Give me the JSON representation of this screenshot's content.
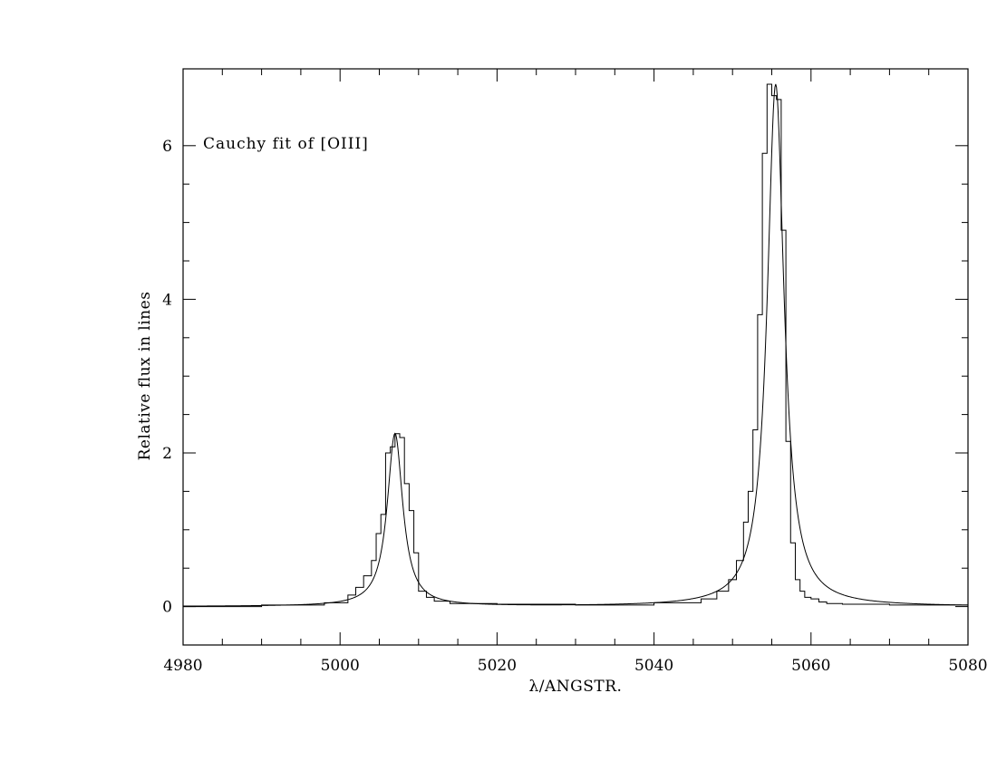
{
  "chart_data": {
    "type": "line",
    "annotation": "Cauchy fit of [OIII]",
    "xlabel": "λ/ANGSTR.",
    "ylabel": "Relative flux in lines",
    "xlim": [
      4980,
      5080
    ],
    "ylim": [
      -0.5,
      7.0
    ],
    "x_ticks": [
      "4980",
      "5000",
      "5020",
      "5040",
      "5060",
      "5080"
    ],
    "y_ticks": [
      "0",
      "2",
      "4",
      "6"
    ],
    "grid": false,
    "legend": "none",
    "series": [
      {
        "style": "smooth",
        "cauchy_components": [
          {
            "center": 5007.0,
            "peak": 2.25,
            "hwhm": 1.2
          },
          {
            "center": 5055.5,
            "peak": 6.8,
            "hwhm": 1.3
          }
        ],
        "baseline": 0.0
      },
      {
        "style": "steps",
        "x": [
          4980,
          4990,
          4998,
          5001,
          5002,
          5003,
          5004,
          5004.6,
          5005.2,
          5005.8,
          5006.4,
          5007.0,
          5007.6,
          5008.2,
          5008.8,
          5009.4,
          5010.0,
          5011.0,
          5012.0,
          5014.0,
          5020.0,
          5030.0,
          5040.0,
          5046.0,
          5048.0,
          5049.5,
          5050.5,
          5051.4,
          5052.0,
          5052.6,
          5053.2,
          5053.8,
          5054.4,
          5055.0,
          5055.6,
          5056.2,
          5056.8,
          5057.4,
          5058.0,
          5058.6,
          5059.2,
          5060.0,
          5061.0,
          5062.0,
          5064.0,
          5070.0,
          5080.0
        ],
        "y": [
          0.0,
          0.02,
          0.05,
          0.15,
          0.25,
          0.4,
          0.6,
          0.95,
          1.2,
          2.0,
          2.08,
          2.25,
          2.2,
          1.6,
          1.25,
          0.7,
          0.2,
          0.12,
          0.07,
          0.04,
          0.03,
          0.02,
          0.05,
          0.1,
          0.2,
          0.35,
          0.6,
          1.1,
          1.5,
          2.3,
          3.8,
          5.9,
          6.8,
          6.65,
          6.6,
          4.9,
          2.15,
          0.83,
          0.35,
          0.2,
          0.12,
          0.1,
          0.06,
          0.04,
          0.03,
          0.02,
          0.01
        ]
      }
    ]
  }
}
